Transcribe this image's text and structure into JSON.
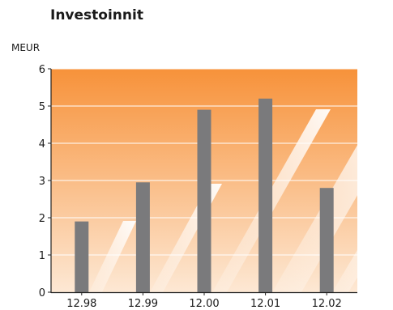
{
  "chart_data": {
    "type": "bar",
    "title": "Investoinnit",
    "ylabel": "MEUR",
    "xlabel": "",
    "categories": [
      "12.98",
      "12.99",
      "12.00",
      "12.01",
      "12.02"
    ],
    "values": [
      1.9,
      2.95,
      4.9,
      5.2,
      2.8
    ],
    "ylim": [
      0,
      6
    ],
    "yticks": [
      0,
      1,
      2,
      3,
      4,
      5,
      6
    ],
    "grid": true,
    "bar_color": "#7a7a7c",
    "background_gradient": [
      "#f7923a",
      "#fde8d4"
    ],
    "grid_color": "#ffffff"
  }
}
